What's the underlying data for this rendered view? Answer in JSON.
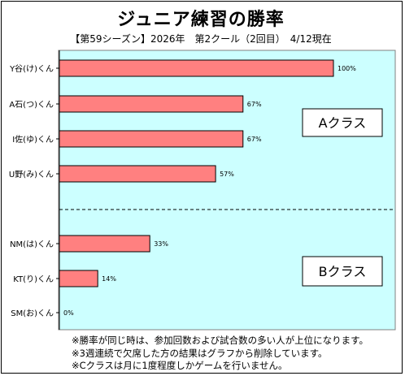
{
  "title": "ジュニア練習の勝率",
  "subtitle": "【第59シーズン】2026年　第2クール（2回目）　4/12現在",
  "chart_data": {
    "type": "bar",
    "orientation": "horizontal",
    "categories": [
      "Y谷(け)くん",
      "A石(つ)くん",
      "I佐(ゆ)くん",
      "U野(み)くん",
      "NM(は)くん",
      "KT(り)くん",
      "SM(お)くん"
    ],
    "values": [
      100,
      67,
      67,
      57,
      33,
      14,
      0
    ],
    "value_labels": [
      "100%",
      "67%",
      "67%",
      "57%",
      "33%",
      "14%",
      "0%"
    ],
    "xlim": [
      0,
      120
    ],
    "groups": [
      {
        "label": "Aクラス",
        "members": [
          0,
          1,
          2,
          3
        ]
      },
      {
        "label": "Bクラス",
        "members": [
          4,
          5,
          6
        ]
      }
    ],
    "colors": {
      "plot_bg": "#ccffff",
      "bar": "#ff8080",
      "bar_stroke": "#000000"
    }
  },
  "notes": [
    "※勝率が同じ時は、参加回数および試合数の多い人が上位になります。",
    "※3週連続で欠席した方の結果はグラフから削除しています。",
    "※Cクラスは月に1度程度しかゲームを行いません。"
  ]
}
